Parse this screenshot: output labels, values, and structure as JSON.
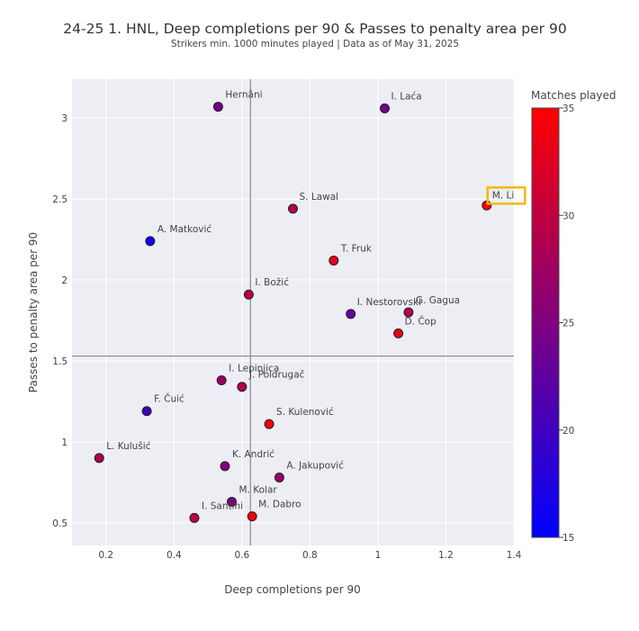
{
  "chart_data": {
    "type": "scatter",
    "title": "24-25 1. HNL, Deep completions per 90 & Passes to penalty area per 90",
    "subtitle": "Strikers min. 1000 minutes played | Data as of May 31, 2025",
    "xlabel": "Deep completions per 90",
    "ylabel": "Passes to penalty area per 90",
    "xlim": [
      0.1,
      1.4
    ],
    "ylim": [
      0.36,
      3.24
    ],
    "xticks": [
      0.2,
      0.4,
      0.6,
      0.8,
      1,
      1.2,
      1.4
    ],
    "yticks": [
      0.5,
      1,
      1.5,
      2,
      2.5,
      3
    ],
    "xtick_labels": [
      "0.2",
      "0.4",
      "0.6",
      "0.8",
      "1",
      "1.2",
      "1.4"
    ],
    "ytick_labels": [
      "0.5",
      "1",
      "1.5",
      "2",
      "2.5",
      "3"
    ],
    "grid": true,
    "reference_lines": {
      "x": 0.625,
      "y": 1.53
    },
    "colorbar": {
      "title": "Matches played",
      "range": [
        15,
        35
      ],
      "ticks": [
        15,
        20,
        25,
        30,
        35
      ],
      "tick_labels": [
        "15",
        "20",
        "25",
        "30",
        "35"
      ],
      "color_low": "#0000ff",
      "color_high": "#ff0000"
    },
    "highlight": "M. Li",
    "highlight_color": "#f5b800",
    "points": [
      {
        "name": "Hernâni",
        "x": 0.53,
        "y": 3.07,
        "matches": 24
      },
      {
        "name": "I. Laća",
        "x": 1.02,
        "y": 3.06,
        "matches": 24
      },
      {
        "name": "M. Li",
        "x": 1.32,
        "y": 2.46,
        "matches": 34
      },
      {
        "name": "S. Lawal",
        "x": 0.75,
        "y": 2.44,
        "matches": 29
      },
      {
        "name": "A. Matković",
        "x": 0.33,
        "y": 2.24,
        "matches": 16
      },
      {
        "name": "T. Fruk",
        "x": 0.87,
        "y": 2.12,
        "matches": 33
      },
      {
        "name": "I. Božić",
        "x": 0.62,
        "y": 1.91,
        "matches": 30
      },
      {
        "name": "I. Nestorovski",
        "x": 0.92,
        "y": 1.79,
        "matches": 23
      },
      {
        "name": "G. Gagua",
        "x": 1.09,
        "y": 1.8,
        "matches": 29
      },
      {
        "name": "D. Čop",
        "x": 1.06,
        "y": 1.67,
        "matches": 33
      },
      {
        "name": "I. Lepinjica",
        "x": 0.54,
        "y": 1.38,
        "matches": 27
      },
      {
        "name": "J. Poldrugač",
        "x": 0.6,
        "y": 1.34,
        "matches": 29
      },
      {
        "name": "F. Čuić",
        "x": 0.32,
        "y": 1.19,
        "matches": 20
      },
      {
        "name": "S. Kulenović",
        "x": 0.68,
        "y": 1.11,
        "matches": 34
      },
      {
        "name": "L. Kulušić",
        "x": 0.18,
        "y": 0.9,
        "matches": 29
      },
      {
        "name": "K. Andrić",
        "x": 0.55,
        "y": 0.85,
        "matches": 25
      },
      {
        "name": "A. Jakupović",
        "x": 0.71,
        "y": 0.78,
        "matches": 27
      },
      {
        "name": "M. Kolar",
        "x": 0.57,
        "y": 0.63,
        "matches": 25
      },
      {
        "name": "I. Santini",
        "x": 0.46,
        "y": 0.53,
        "matches": 30
      },
      {
        "name": "M. Dabro",
        "x": 0.63,
        "y": 0.54,
        "matches": 34
      }
    ]
  }
}
